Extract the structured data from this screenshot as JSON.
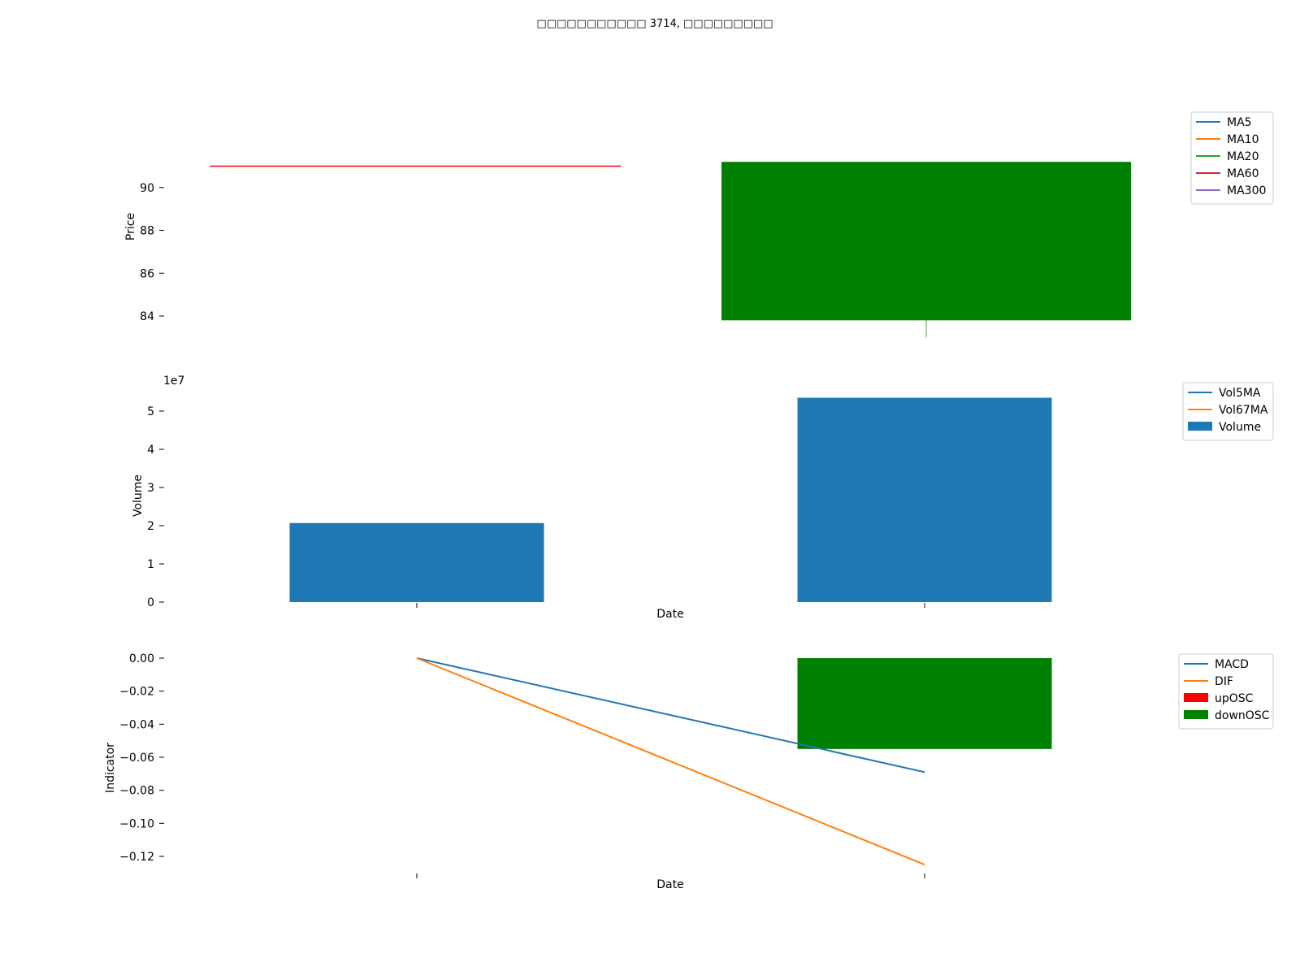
{
  "title": "□□□□□□□□□□□ 3714, □□□□□□□□□",
  "colors": {
    "ma5": "#1f77b4",
    "ma10": "#ff7f0e",
    "ma20": "#2ca02c",
    "ma60": "#d62728",
    "ma300": "#9467bd",
    "volume": "#1f77b4",
    "vol5ma": "#1f77b4",
    "vol67ma": "#ff7f0e",
    "candle_down": "#008000",
    "ma60_line": "#ff0000",
    "wick": "#4caf50",
    "macd": "#1f77b4",
    "dif": "#ff7f0e",
    "uposc": "#ff0000",
    "downosc": "#008000"
  },
  "chart_data": [
    {
      "type": "line",
      "panel": "price",
      "ylabel": "Price",
      "ylim": [
        82.9,
        93.9
      ],
      "yticks": [
        84,
        86,
        88,
        90
      ],
      "ytick_labels": [
        "84",
        "86",
        "88",
        "90"
      ],
      "x": [
        0,
        1
      ],
      "candles": [
        {
          "x": 1,
          "open": 91.2,
          "close": 83.8,
          "high": 91.2,
          "low": 83.0,
          "color": "down"
        }
      ],
      "ma_segments": [
        {
          "name": "MA60",
          "x0": 0,
          "x1": 0.81,
          "value": 91.0
        }
      ],
      "legend": [
        "MA5",
        "MA10",
        "MA20",
        "MA60",
        "MA300"
      ],
      "legend_position": "top-right"
    },
    {
      "type": "bar",
      "panel": "volume",
      "ylabel": "Volume",
      "xlabel": "Date",
      "scale_label": "1e7",
      "ylim": [
        0,
        5.6
      ],
      "yticks": [
        0,
        1,
        2,
        3,
        4,
        5
      ],
      "ytick_labels": [
        "0",
        "1",
        "2",
        "3",
        "4",
        "5"
      ],
      "x": [
        0,
        1
      ],
      "values": [
        2.07,
        5.35
      ],
      "legend": [
        "Vol5MA",
        "Vol67MA",
        "Volume"
      ],
      "legend_position": "top-right"
    },
    {
      "type": "line",
      "panel": "indicator",
      "ylabel": "Indicator",
      "xlabel": "Date",
      "ylim": [
        -0.13,
        0.0
      ],
      "yticks": [
        0.0,
        -0.02,
        -0.04,
        -0.06,
        -0.08,
        -0.1,
        -0.12
      ],
      "ytick_labels": [
        "0.00",
        "−0.02",
        "−0.04",
        "−0.06",
        "−0.08",
        "−0.10",
        "−0.12"
      ],
      "x": [
        0,
        1
      ],
      "series": [
        {
          "name": "MACD",
          "values": [
            0.0,
            -0.069
          ]
        },
        {
          "name": "DIF",
          "values": [
            0.0,
            -0.125
          ]
        }
      ],
      "osc_bars": [
        {
          "x": 1,
          "value": -0.055,
          "kind": "downOSC"
        }
      ],
      "legend": [
        "MACD",
        "DIF",
        "upOSC",
        "downOSC"
      ],
      "legend_position": "top-right"
    }
  ]
}
